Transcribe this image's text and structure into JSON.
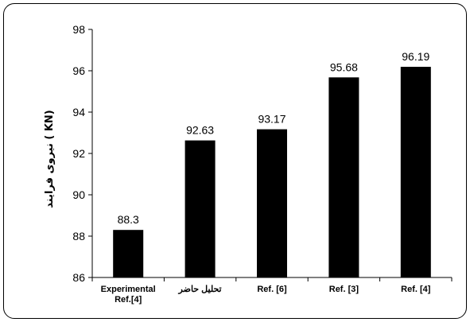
{
  "chart_data": {
    "type": "bar",
    "title": "",
    "xlabel": "",
    "ylabel": "نیروی فرایند ( KN)",
    "categories": [
      "Experimental Ref.[4]",
      "تحلیل حاضر",
      "Ref. [6]",
      "Ref. [3]",
      "Ref. [4]"
    ],
    "category_lines": [
      [
        "Experimental",
        "Ref.[4]"
      ],
      [
        "تحلیل حاضر"
      ],
      [
        "Ref. [6]"
      ],
      [
        "Ref. [3]"
      ],
      [
        "Ref. [4]"
      ]
    ],
    "values": [
      88.3,
      92.63,
      93.17,
      95.68,
      96.19
    ],
    "data_labels": [
      "88.3",
      "92.63",
      "93.17",
      "95.68",
      "96.19"
    ],
    "ylim": [
      86,
      98
    ],
    "yticks": [
      86,
      88,
      90,
      92,
      94,
      96,
      98
    ],
    "grid": false,
    "legend": "none",
    "bar_color": "#000000"
  }
}
